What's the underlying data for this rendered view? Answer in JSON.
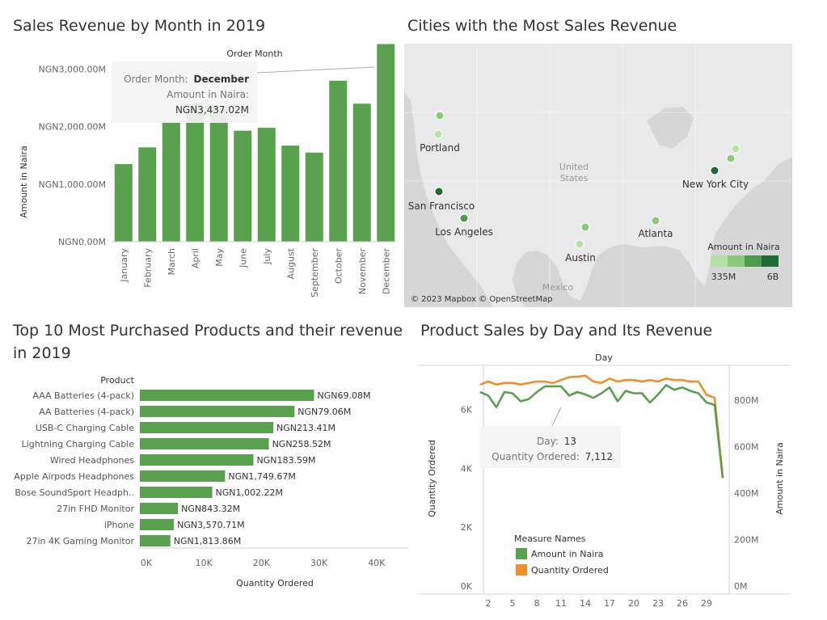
{
  "titles": {
    "monthly": "Sales Revenue by Month in 2019",
    "cities": "Cities with the Most Sales Revenue",
    "products": "Top 10 Most Purchased Products and their revenue in 2019",
    "daily": "Product Sales by Day and Its Revenue"
  },
  "colors": {
    "green": "#59a14f",
    "orange": "#f28e2b",
    "map_land": "#e9e9e9",
    "map_water": "#d6d6d6"
  },
  "chart_data": [
    {
      "type": "bar",
      "id": "monthly",
      "title": "Sales Revenue by Month in 2019",
      "xlabel": "Order Month",
      "ylabel": "Amount in Naira",
      "categories": [
        "January",
        "February",
        "March",
        "April",
        "May",
        "June",
        "July",
        "August",
        "September",
        "October",
        "November",
        "December"
      ],
      "values": [
        1350,
        1640,
        2090,
        2370,
        2340,
        1930,
        1980,
        1670,
        1550,
        2800,
        2400,
        3437.02
      ],
      "ylim": [
        0,
        3500
      ],
      "yticks": [
        0,
        1000,
        2000,
        3000
      ],
      "ytick_labels": [
        "NGN0.00M",
        "NGN1,000.00M",
        "NGN2,000.00M",
        "NGN3,000.00M"
      ],
      "tooltip": {
        "line1_label": "Order Month:",
        "line1_value": "December",
        "line2_label": "Amount in Naira:",
        "line2_value": "NGN3,437.02M"
      }
    },
    {
      "type": "map",
      "id": "cities",
      "title": "Cities with the Most Sales Revenue",
      "cities": [
        {
          "name": "Portland",
          "value_level": 1,
          "label": "Portland"
        },
        {
          "name": "Seattle",
          "value_level": 2,
          "label": ""
        },
        {
          "name": "San Francisco",
          "value_level": 4,
          "label": "San Francisco"
        },
        {
          "name": "Los Angeles",
          "value_level": 3,
          "label": "Los Angeles"
        },
        {
          "name": "Austin",
          "value_level": 1,
          "label": "Austin"
        },
        {
          "name": "Dallas",
          "value_level": 2,
          "label": ""
        },
        {
          "name": "Atlanta",
          "value_level": 2,
          "label": "Atlanta"
        },
        {
          "name": "New York City",
          "value_level": 4,
          "label": "New York City"
        },
        {
          "name": "Boston",
          "value_level": 2,
          "label": ""
        },
        {
          "name": "Maine",
          "value_level": 1,
          "label": ""
        }
      ],
      "country_labels": [
        "United",
        "States",
        "Mexico"
      ],
      "legend": {
        "title": "Amount in Naira",
        "min": "335M",
        "max": "6B",
        "colors": [
          "#b6e2a6",
          "#8cc97c",
          "#4f9b4f",
          "#1f6b34"
        ]
      },
      "attribution": "© 2023 Mapbox © OpenStreetMap"
    },
    {
      "type": "bar",
      "id": "products",
      "orientation": "horizontal",
      "title": "Top 10 Most Purchased Products and their revenue in 2019",
      "ylabel": "Product",
      "xlabel": "Quantity Ordered",
      "categories": [
        "AAA Batteries (4-pack)",
        "AA Batteries (4-pack)",
        "USB-C Charging Cable",
        "Lightning Charging Cable",
        "Wired Headphones",
        "Apple Airpods Headphones",
        "Bose SoundSport Headph..",
        "27in FHD Monitor",
        "iPhone",
        "27in 4K Gaming Monitor"
      ],
      "values": [
        31017,
        27635,
        23975,
        23217,
        20557,
        15661,
        13457,
        7550,
        6849,
        6244
      ],
      "data_labels": [
        "NGN69.08M",
        "NGN79.06M",
        "NGN213.41M",
        "NGN258.52M",
        "NGN183.59M",
        "NGN1,749.67M",
        "NGN1,002.22M",
        "NGN843.32M",
        "NGN3,570.71M",
        "NGN1,813.86M"
      ],
      "xlim": [
        0,
        45000
      ],
      "xticks": [
        0,
        10000,
        20000,
        30000,
        40000
      ],
      "xtick_labels": [
        "0K",
        "10K",
        "20K",
        "30K",
        "40K"
      ]
    },
    {
      "type": "line",
      "id": "daily",
      "title": "Product Sales by Day and Its Revenue",
      "xlabel": "Day",
      "ylabel_left": "Quantity Ordered",
      "ylabel_right": "Amount in Naira",
      "x": [
        1,
        2,
        3,
        4,
        5,
        6,
        7,
        8,
        9,
        10,
        11,
        12,
        13,
        14,
        15,
        16,
        17,
        18,
        19,
        20,
        21,
        22,
        23,
        24,
        25,
        26,
        27,
        28,
        29,
        30,
        31
      ],
      "xticks": [
        2,
        5,
        8,
        11,
        14,
        17,
        20,
        23,
        26,
        29
      ],
      "ylim_left": [
        0,
        7500
      ],
      "yticks_left": [
        0,
        2000,
        4000,
        6000
      ],
      "ytick_labels_left": [
        "0K",
        "2K",
        "4K",
        "6K"
      ],
      "ylim_right": [
        0,
        950
      ],
      "yticks_right": [
        0,
        200,
        400,
        600,
        800
      ],
      "ytick_labels_right": [
        "0M",
        "200M",
        "400M",
        "600M",
        "800M"
      ],
      "series": [
        {
          "name": "Amount in Naira",
          "axis": "right",
          "color": "#59a14f",
          "values": [
            835,
            820,
            770,
            835,
            830,
            795,
            805,
            835,
            860,
            860,
            860,
            820,
            835,
            825,
            810,
            830,
            855,
            795,
            840,
            830,
            830,
            790,
            825,
            865,
            845,
            855,
            840,
            830,
            790,
            780,
            465
          ]
        },
        {
          "name": "Quantity Ordered",
          "axis": "left",
          "color": "#f28e2b",
          "values": [
            6850,
            6950,
            6850,
            6900,
            6900,
            6850,
            6900,
            6950,
            6950,
            6900,
            7000,
            7100,
            7112,
            7150,
            6950,
            6900,
            7050,
            6950,
            7000,
            7000,
            6950,
            7000,
            6950,
            7050,
            7000,
            7000,
            6950,
            6950,
            6500,
            6400,
            3700
          ]
        }
      ],
      "legend_title": "Measure Names",
      "tooltip": {
        "line1_label": "Day:",
        "line1_value": "13",
        "line2_label": "Quantity Ordered:",
        "line2_value": "7,112"
      }
    }
  ]
}
